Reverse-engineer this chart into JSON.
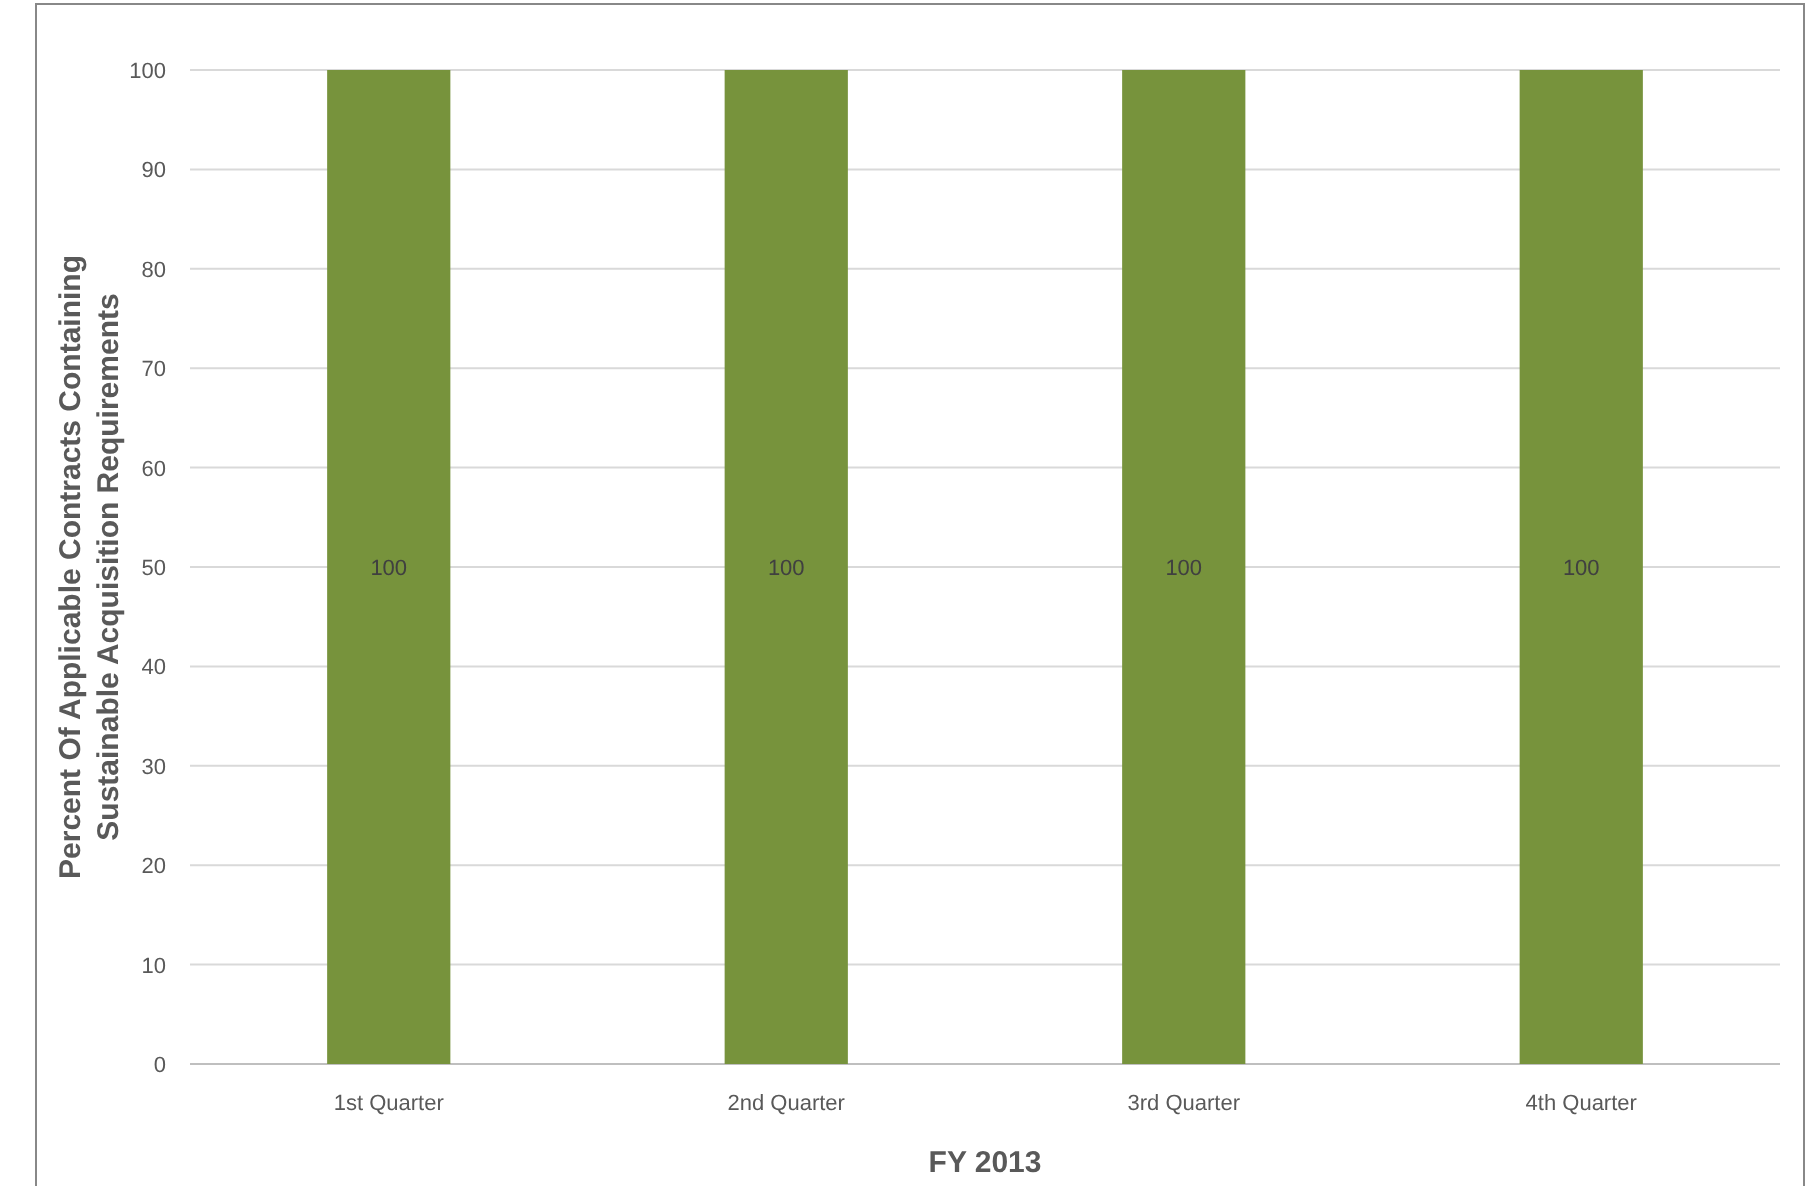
{
  "chart_data": {
    "type": "bar",
    "xlabel": "FY 2013",
    "ylabel": "Percent Of Applicable Contracts Containing\nSustainable Acquisition Requirements",
    "categories": [
      "1st Quarter",
      "2nd Quarter",
      "3rd Quarter",
      "4th Quarter"
    ],
    "values": [
      100,
      100,
      100,
      100
    ],
    "color": "#77933c",
    "ylim": [
      0,
      100
    ],
    "yticks": [
      0,
      10,
      20,
      30,
      40,
      50,
      60,
      70,
      80,
      90,
      100
    ],
    "grid": "y",
    "data_labels": true
  }
}
